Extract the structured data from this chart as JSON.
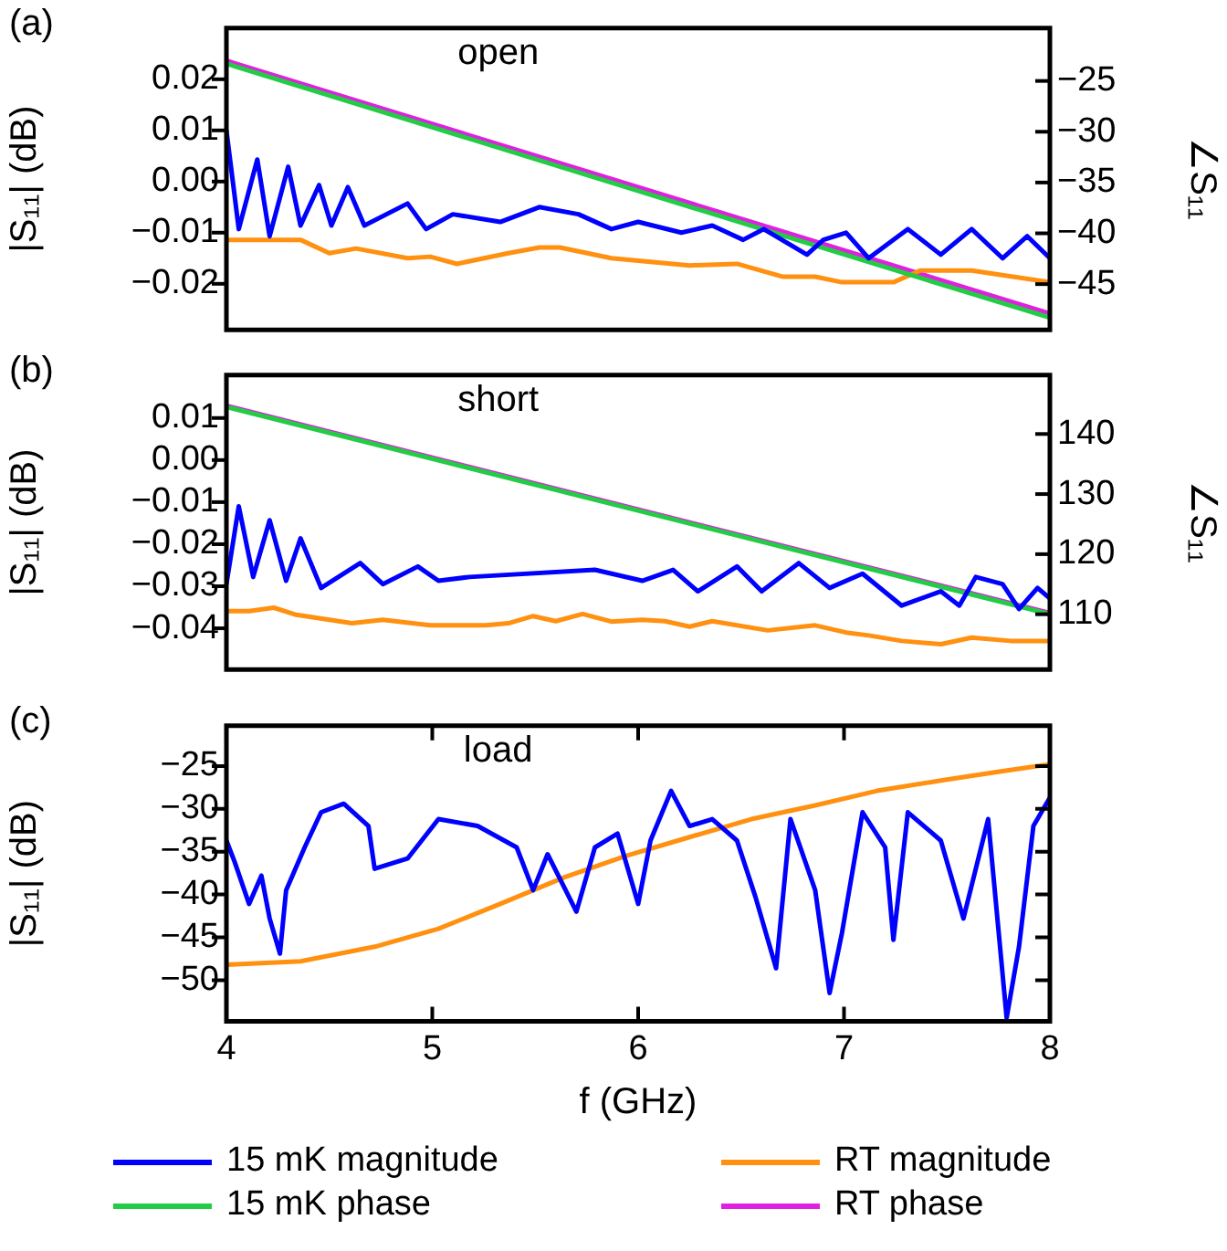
{
  "chart_data": [
    {
      "type": "line",
      "title": "(a)",
      "annotations": [
        "open"
      ],
      "ylabel": "|S₁₁| (dB)",
      "y2label": "∠S₁₁",
      "xlim": [
        4,
        8
      ],
      "ylim": [
        -0.029,
        0.03
      ],
      "yticks": [
        {
          "value": 0.02,
          "label": "0.02"
        },
        {
          "value": 0.01,
          "label": "0.01"
        },
        {
          "value": 0,
          "label": "0.00"
        },
        {
          "value": -0.01,
          "label": "−0.01"
        },
        {
          "value": -0.02,
          "label": "−0.02"
        }
      ],
      "y2lim": [
        -49.5,
        -19.8
      ],
      "y2ticks": [
        {
          "value": -25,
          "label": "−25"
        },
        {
          "value": -30,
          "label": "−30"
        },
        {
          "value": -35,
          "label": "−35"
        },
        {
          "value": -40,
          "label": "−40"
        },
        {
          "value": -45,
          "label": "−45"
        }
      ],
      "tick_labels": [
        "y",
        "y2"
      ],
      "grid": false,
      "legend": "bottom",
      "line_style": "solid",
      "marker": "none",
      "series": [
        {
          "name": "15 mK magnitude",
          "color": "#0000ff",
          "x": [
            4.0,
            4.06,
            4.15,
            4.21,
            4.3,
            4.36,
            4.45,
            4.51,
            4.59,
            4.67,
            4.88,
            4.97,
            5.1,
            5.33,
            5.52,
            5.71,
            5.87,
            6.0,
            6.21,
            6.36,
            6.51,
            6.61,
            6.82,
            6.9,
            7.01,
            7.12,
            7.31,
            7.47,
            7.62,
            7.77,
            7.89,
            8.0
          ],
          "values": [
            0.01,
            -0.0093,
            0.0043,
            -0.0107,
            0.0029,
            -0.0086,
            -0.0007,
            -0.0086,
            -0.0011,
            -0.0086,
            -0.0043,
            -0.0093,
            -0.0064,
            -0.0079,
            -0.005,
            -0.0064,
            -0.0093,
            -0.0079,
            -0.01,
            -0.0086,
            -0.0114,
            -0.0093,
            -0.0143,
            -0.0114,
            -0.01,
            -0.015,
            -0.0093,
            -0.0143,
            -0.0093,
            -0.015,
            -0.0107,
            -0.015
          ]
        },
        {
          "name": "15 mK phase",
          "color": "#22cc44",
          "axis": "y2",
          "x": [
            4,
            7.5,
            8
          ],
          "values": [
            -23.3,
            -45.2,
            -48.3
          ]
        },
        {
          "name": "RT magnitude",
          "color": "#ff9010",
          "x": [
            4.0,
            4.36,
            4.5,
            4.63,
            4.88,
            4.99,
            5.12,
            5.37,
            5.52,
            5.62,
            5.87,
            6.25,
            6.48,
            6.7,
            6.86,
            6.99,
            7.24,
            7.37,
            7.62,
            8.0
          ],
          "values": [
            -0.0114,
            -0.0114,
            -0.014,
            -0.0131,
            -0.015,
            -0.0147,
            -0.0161,
            -0.014,
            -0.0129,
            -0.0129,
            -0.015,
            -0.0164,
            -0.0161,
            -0.0186,
            -0.0186,
            -0.0197,
            -0.0197,
            -0.0174,
            -0.0174,
            -0.0197
          ]
        },
        {
          "name": "RT phase",
          "color": "#e020e0",
          "axis": "y2",
          "x": [
            4,
            8
          ],
          "values": [
            -23,
            -47.9
          ]
        }
      ]
    },
    {
      "type": "line",
      "title": "(b)",
      "annotations": [
        "short"
      ],
      "ylabel": "|S₁₁| (dB)",
      "y2label": "∠S₁₁",
      "xlim": [
        4,
        8
      ],
      "ylim": [
        -0.0498,
        0.0202
      ],
      "yticks": [
        {
          "value": 0.01,
          "label": "0.01"
        },
        {
          "value": 0,
          "label": "0.00"
        },
        {
          "value": -0.01,
          "label": "−0.01"
        },
        {
          "value": -0.02,
          "label": "−0.02"
        },
        {
          "value": -0.03,
          "label": "−0.03"
        },
        {
          "value": -0.04,
          "label": "−0.04"
        }
      ],
      "y2lim": [
        100.8,
        149.8
      ],
      "y2ticks": [
        {
          "value": 110,
          "label": "110"
        },
        {
          "value": 120,
          "label": "120"
        },
        {
          "value": 130,
          "label": "130"
        },
        {
          "value": 140,
          "label": "140"
        }
      ],
      "tick_labels": [
        "y",
        "y2"
      ],
      "grid": false,
      "line_style": "solid",
      "marker": "none",
      "series": [
        {
          "color": "#0000ff",
          "x": [
            4.0,
            4.06,
            4.13,
            4.21,
            4.29,
            4.36,
            4.46,
            4.65,
            4.76,
            4.93,
            5.03,
            5.18,
            5.79,
            6.02,
            6.17,
            6.29,
            6.48,
            6.6,
            6.78,
            6.93,
            7.09,
            7.28,
            7.47,
            7.56,
            7.64,
            7.77,
            7.85,
            7.94,
            8.0
          ],
          "values": [
            -0.0295,
            -0.011,
            -0.0278,
            -0.0143,
            -0.0287,
            -0.0186,
            -0.0304,
            -0.0245,
            -0.0295,
            -0.0253,
            -0.0287,
            -0.0278,
            -0.0261,
            -0.0287,
            -0.0261,
            -0.0312,
            -0.0253,
            -0.0312,
            -0.0245,
            -0.0304,
            -0.027,
            -0.0346,
            -0.0312,
            -0.0346,
            -0.0278,
            -0.0295,
            -0.0354,
            -0.0304,
            -0.0329
          ]
        },
        {
          "color": "#22cc44",
          "axis": "y2",
          "x": [
            4,
            8
          ],
          "values": [
            144.5,
            110.0
          ]
        },
        {
          "color": "#ff9010",
          "x": [
            4.0,
            4.11,
            4.23,
            4.34,
            4.61,
            4.76,
            4.99,
            5.26,
            5.37,
            5.49,
            5.6,
            5.73,
            5.87,
            6.02,
            6.13,
            6.25,
            6.36,
            6.63,
            6.86,
            7.01,
            7.12,
            7.28,
            7.47,
            7.62,
            7.81,
            8.0
          ],
          "values": [
            -0.0359,
            -0.0359,
            -0.0351,
            -0.0368,
            -0.0388,
            -0.038,
            -0.0393,
            -0.0393,
            -0.0388,
            -0.0371,
            -0.0383,
            -0.0366,
            -0.0384,
            -0.038,
            -0.0383,
            -0.0396,
            -0.0383,
            -0.0405,
            -0.0393,
            -0.041,
            -0.0417,
            -0.043,
            -0.0438,
            -0.0422,
            -0.043,
            -0.043
          ]
        },
        {
          "color": "#e020e0",
          "axis": "y2",
          "x": [
            4,
            8
          ],
          "values": [
            144.7,
            110.2
          ]
        }
      ]
    },
    {
      "type": "line",
      "title": "(c)",
      "annotations": [
        "load"
      ],
      "ylabel": "|S₁₁| (dB)",
      "xlabel": "f (GHz)",
      "xlim": [
        4,
        8
      ],
      "xticks": [
        4,
        5,
        6,
        7,
        8
      ],
      "ylim": [
        -54.8,
        -20.3
      ],
      "yticks": [
        {
          "value": -25,
          "label": "−25"
        },
        {
          "value": -30,
          "label": "−30"
        },
        {
          "value": -35,
          "label": "−35"
        },
        {
          "value": -40,
          "label": "−40"
        },
        {
          "value": -45,
          "label": "−45"
        },
        {
          "value": -50,
          "label": "−50"
        }
      ],
      "grid": false,
      "line_style": "solid",
      "marker": "none",
      "series": [
        {
          "color": "#0000ff",
          "x": [
            4.0,
            4.04,
            4.11,
            4.17,
            4.21,
            4.26,
            4.29,
            4.38,
            4.46,
            4.57,
            4.69,
            4.72,
            4.88,
            5.03,
            5.22,
            5.41,
            5.49,
            5.56,
            5.7,
            5.79,
            5.9,
            6.0,
            6.06,
            6.16,
            6.25,
            6.36,
            6.48,
            6.57,
            6.67,
            6.74,
            6.86,
            6.93,
            6.99,
            7.09,
            7.2,
            7.24,
            7.31,
            7.47,
            7.58,
            7.7,
            7.79,
            7.85,
            7.92,
            8.0
          ],
          "values": [
            -33.7,
            -36.2,
            -41.1,
            -37.8,
            -42.8,
            -46.9,
            -39.5,
            -34.5,
            -30.4,
            -29.4,
            -32,
            -37,
            -35.8,
            -31.2,
            -32,
            -34.5,
            -39.5,
            -35.3,
            -42,
            -34.5,
            -32.9,
            -41.1,
            -33.7,
            -27.9,
            -32,
            -31.2,
            -33.7,
            -40.3,
            -48.6,
            -31.2,
            -39.5,
            -51.5,
            -44.5,
            -30.4,
            -34.5,
            -45.3,
            -30.4,
            -33.7,
            -42.8,
            -31.2,
            -54.4,
            -46.1,
            -32,
            -28.7
          ]
        },
        {
          "color": "#ff9010",
          "x": [
            4.0,
            4.36,
            4.72,
            5.03,
            5.33,
            5.64,
            5.94,
            6.25,
            6.55,
            6.86,
            7.16,
            7.47,
            7.77,
            8.0
          ],
          "values": [
            -48.2,
            -47.8,
            -46.1,
            -44,
            -41.1,
            -38,
            -35.5,
            -33.3,
            -31.2,
            -29.6,
            -27.9,
            -26.7,
            -25.6,
            -24.8
          ]
        }
      ]
    }
  ]
}
